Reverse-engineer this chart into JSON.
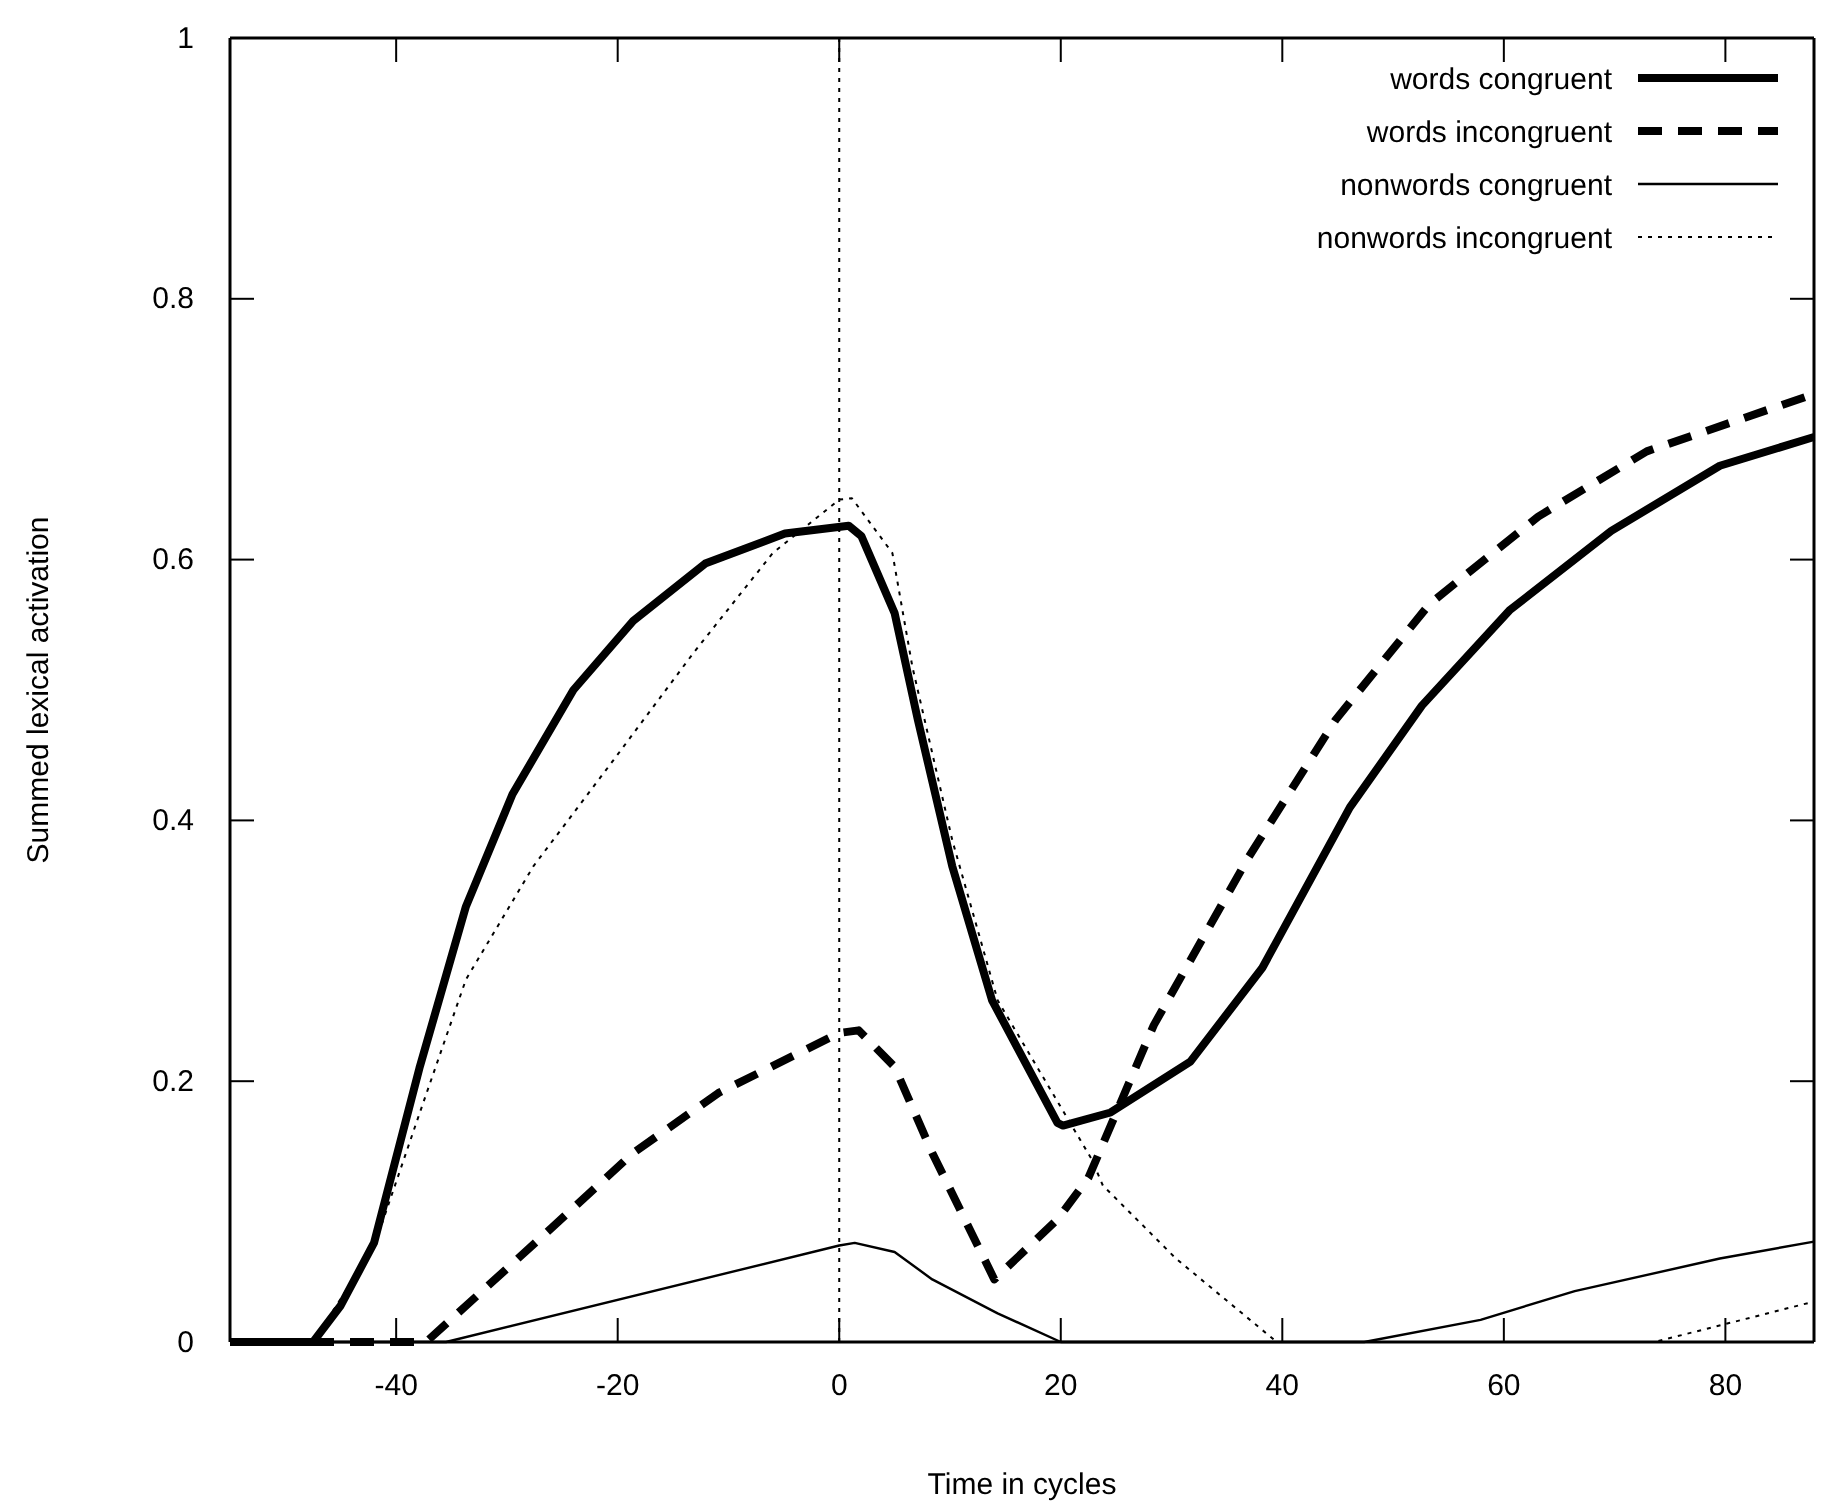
{
  "chart_data": {
    "type": "line",
    "xlabel": "Time in cycles",
    "ylabel": "Summed lexical activation",
    "xlim": [
      -55,
      88
    ],
    "ylim": [
      0,
      1
    ],
    "xticks": [
      -40,
      -20,
      0,
      20,
      40,
      60,
      80
    ],
    "yticks": [
      0,
      0.2,
      0.4,
      0.6,
      0.8,
      1
    ],
    "grid": false,
    "legend": "top right",
    "marker": "none",
    "ref_lines": [
      {
        "axis": "x",
        "value": 0,
        "line_style": "dotted",
        "color": "#000000"
      }
    ],
    "series": [
      {
        "name": "words congruent",
        "color": "#000000",
        "line_style": "solid",
        "x": [
          -55,
          -47.5,
          -45,
          -42,
          -37.9,
          -33.7,
          -29.5,
          -24,
          -18.6,
          -12.1,
          -4.9,
          0.85,
          2,
          5,
          7.1,
          10.2,
          13.8,
          19.7,
          20.2,
          24.5,
          31.7,
          38.2,
          46.1,
          52.6,
          60.5,
          69.7,
          79.5,
          88
        ],
        "values": [
          0,
          0,
          0.028,
          0.076,
          0.21,
          0.334,
          0.42,
          0.5,
          0.553,
          0.597,
          0.62,
          0.626,
          0.618,
          0.559,
          0.477,
          0.365,
          0.262,
          0.168,
          0.166,
          0.176,
          0.215,
          0.287,
          0.41,
          0.488,
          0.561,
          0.622,
          0.672,
          0.694
        ]
      },
      {
        "name": "words incongruent",
        "color": "#000000",
        "line_style": "dashed",
        "x": [
          -55,
          -37.3,
          -32.5,
          -25.9,
          -18.6,
          -10.9,
          0,
          1.75,
          5,
          8.4,
          14,
          19.7,
          22.5,
          28.4,
          36.9,
          44.8,
          53.3,
          63.1,
          72.9,
          88
        ],
        "values": [
          0,
          0,
          0.037,
          0.088,
          0.145,
          0.191,
          0.237,
          0.239,
          0.211,
          0.145,
          0.048,
          0.094,
          0.126,
          0.243,
          0.371,
          0.477,
          0.566,
          0.633,
          0.683,
          0.727
        ]
      },
      {
        "name": "nonwords congruent",
        "color": "#000000",
        "line_style": "solid",
        "x": [
          -55,
          -35.5,
          0,
          1.4,
          5,
          8.4,
          14.3,
          20,
          47.4,
          57.9,
          66.4,
          79.5,
          88
        ],
        "values": [
          0,
          0,
          0.074,
          0.076,
          0.069,
          0.048,
          0.022,
          0,
          0,
          0.017,
          0.039,
          0.064,
          0.077
        ]
      },
      {
        "name": "nonwords incongruent",
        "color": "#000000",
        "line_style": "dotted",
        "x": [
          -55,
          -47.5,
          -42,
          -37.9,
          -33.7,
          -27.6,
          -20.4,
          -13.2,
          -6,
          0,
          1.15,
          4.8,
          6.6,
          10.2,
          14.3,
          22.8,
          23.8,
          30.4,
          39.5,
          73.6,
          88
        ],
        "values": [
          0,
          0,
          0.073,
          0.175,
          0.278,
          0.365,
          0.446,
          0.528,
          0.605,
          0.646,
          0.647,
          0.605,
          0.518,
          0.385,
          0.262,
          0.14,
          0.12,
          0.064,
          0,
          0,
          0.031
        ]
      }
    ]
  }
}
